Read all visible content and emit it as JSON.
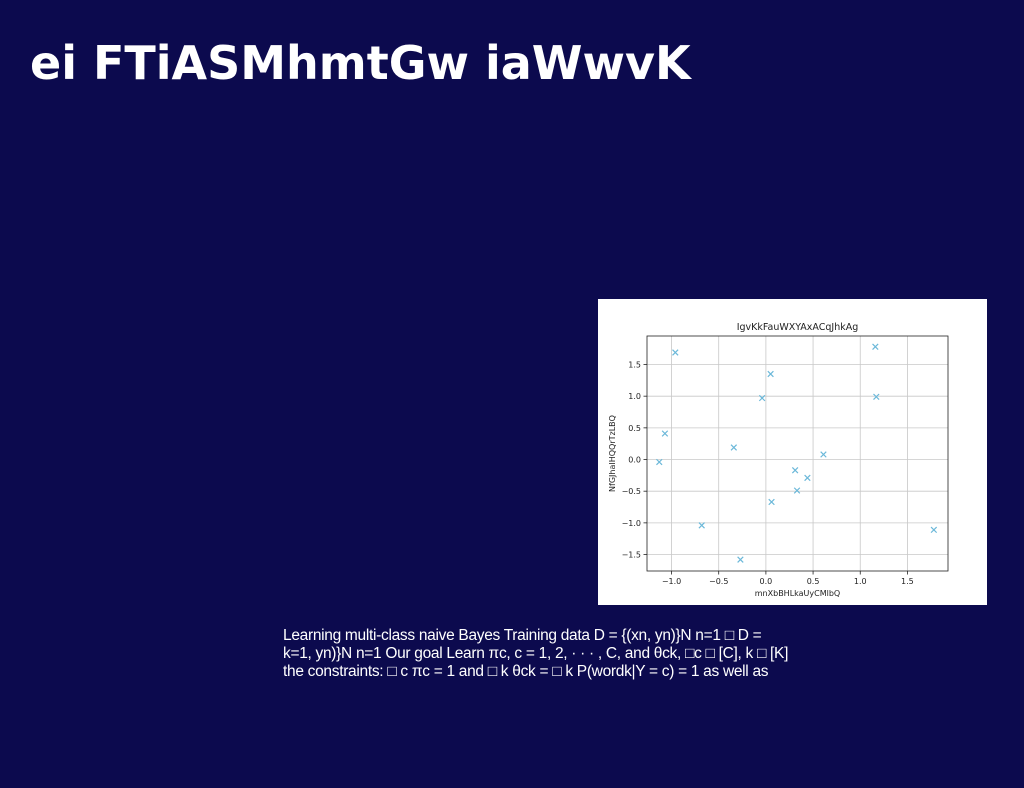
{
  "slide": {
    "title": "ei FTiASMhmtGw iaWwvK",
    "body_lines": [
      "Learning multi-class naive Bayes Training data D = {(xn, yn)}N n=1 □ D =",
      "k=1, yn)}N n=1 Our goal Learn πc, c = 1, 2, · · · , C, and θck, □c □ [C], k □ [K]",
      "the constraints: □ c πc = 1 and □ k θck = □ k P(wordk|Y = c) = 1 as well as"
    ]
  },
  "colors": {
    "background": "#0c0a4e",
    "text": "#ffffff",
    "marker": "#6bb8d9",
    "grid": "#c8c8c8"
  },
  "chart_data": {
    "type": "scatter",
    "title": "IgvKkFauWXYAxACqJhkAg",
    "xlabel": "mnXbBHLkaUyCMlbQ",
    "ylabel": "NfGJhaIHQQrTzLBQ",
    "marker": "x",
    "grid": true,
    "xlim": [
      -1.26,
      1.93
    ],
    "ylim": [
      -1.76,
      1.95
    ],
    "xticks": [
      -1.0,
      -0.5,
      0.0,
      0.5,
      1.0,
      1.5
    ],
    "xtick_labels": [
      "−1.0",
      "−0.5",
      "0.0",
      "0.5",
      "1.0",
      "1.5"
    ],
    "yticks": [
      -1.5,
      -1.0,
      -0.5,
      0.0,
      0.5,
      1.0,
      1.5
    ],
    "ytick_labels": [
      "−1.5",
      "−1.0",
      "−0.5",
      "0.0",
      "0.5",
      "1.0",
      "1.5"
    ],
    "points": [
      {
        "x": -0.96,
        "y": 1.69
      },
      {
        "x": 1.16,
        "y": 1.78
      },
      {
        "x": 0.05,
        "y": 1.35
      },
      {
        "x": -0.04,
        "y": 0.97
      },
      {
        "x": 1.17,
        "y": 0.99
      },
      {
        "x": -1.07,
        "y": 0.41
      },
      {
        "x": -0.34,
        "y": 0.19
      },
      {
        "x": 0.61,
        "y": 0.08
      },
      {
        "x": -1.13,
        "y": -0.04
      },
      {
        "x": 0.31,
        "y": -0.17
      },
      {
        "x": 0.44,
        "y": -0.29
      },
      {
        "x": 0.33,
        "y": -0.49
      },
      {
        "x": 0.06,
        "y": -0.67
      },
      {
        "x": -0.68,
        "y": -1.04
      },
      {
        "x": 1.78,
        "y": -1.11
      },
      {
        "x": -0.27,
        "y": -1.58
      }
    ]
  }
}
